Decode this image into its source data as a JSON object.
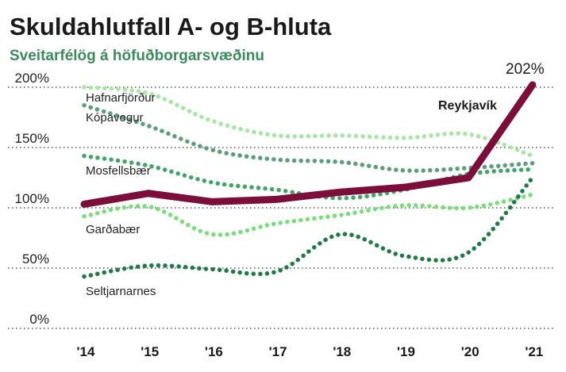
{
  "chart_data": {
    "type": "line",
    "title": "Skuldahlutfall A- og B-hluta",
    "subtitle": "Sveitarfélög á höfuðborgarsvæðinu",
    "x": [
      "'14",
      "'15",
      "'16",
      "'17",
      "'18",
      "'19",
      "'20",
      "'21"
    ],
    "y_ticks": [
      "0%",
      "50%",
      "100%",
      "150%",
      "200%"
    ],
    "ylim": [
      0,
      200
    ],
    "grid": "horizontal dotted",
    "series": [
      {
        "name": "Hafnarfjörður",
        "style": "dotted",
        "color": "#a8e6a8",
        "values": [
          200,
          195,
          172,
          160,
          160,
          158,
          161,
          143
        ]
      },
      {
        "name": "Kópavogur",
        "style": "dotted",
        "color": "#5e9e7a",
        "values": [
          185,
          168,
          148,
          140,
          138,
          131,
          133,
          137
        ]
      },
      {
        "name": "Mosfellsbær",
        "style": "dotted",
        "color": "#47a36b",
        "values": [
          143,
          135,
          121,
          115,
          108,
          115,
          128,
          132
        ]
      },
      {
        "name": "Garðabær",
        "style": "dotted",
        "color": "#7ddc7d",
        "values": [
          93,
          101,
          78,
          87,
          94,
          102,
          100,
          111
        ]
      },
      {
        "name": "Seltjarnarnes",
        "style": "dotted",
        "color": "#237a47",
        "values": [
          43,
          52,
          49,
          47,
          78,
          60,
          63,
          125
        ]
      },
      {
        "name": "Reykjavík",
        "style": "solid",
        "color": "#7b0f3a",
        "values": [
          103,
          112,
          105,
          107,
          113,
          117,
          125,
          202
        ]
      }
    ],
    "annotation": "202%"
  }
}
